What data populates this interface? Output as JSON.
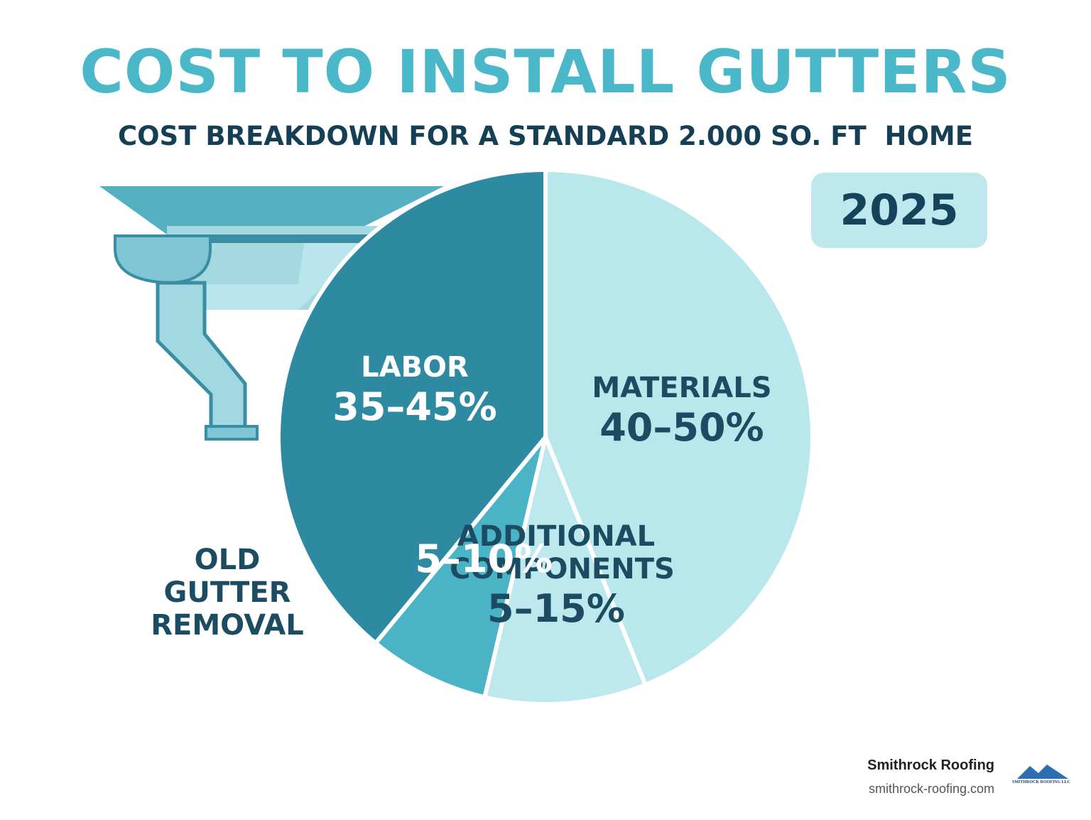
{
  "header": {
    "title": "COST TO INSTALL GUTTERS",
    "subtitle": "COST BREAKDOWN FOR A STANDARD 2.000 SO. FT  HOME",
    "year": "2025"
  },
  "chart_data": {
    "type": "pie",
    "categories": [
      "MATERIALS",
      "ADDITIONAL COMPONENTS",
      "OLD GUTTER REMOVAL",
      "LABOR"
    ],
    "values": [
      [
        40,
        50
      ],
      [
        5,
        15
      ],
      [
        5,
        10
      ],
      [
        35,
        45
      ]
    ],
    "value_labels": [
      "40–50%",
      "5–15%",
      "5–10%",
      "35–45%"
    ],
    "colors": [
      "#b8e7ec",
      "#bde8ee",
      "#4ab3c5",
      "#2e8aa1"
    ],
    "label_colors": [
      "#1c4c61",
      "#1c4c61",
      "#ffffff",
      "#ffffff"
    ]
  },
  "footer": {
    "brand": "Smithrock Roofing",
    "url": "smithrock-roofing.com",
    "logo_text": "SMITHROCK ROOFING LLC"
  }
}
